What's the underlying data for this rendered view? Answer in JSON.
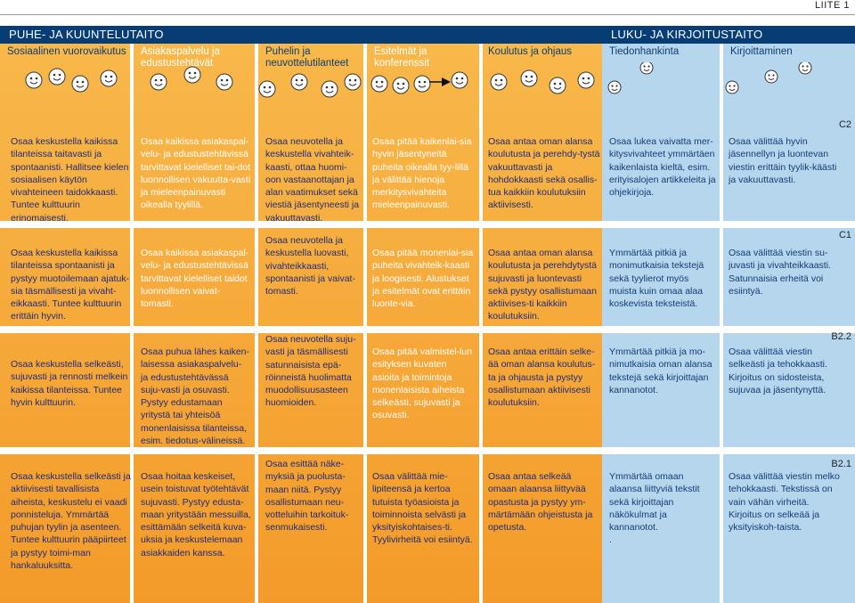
{
  "appendix_label": "LIITE 1",
  "sections": {
    "left": "PUHE- JA KUUNTELUTAITO",
    "right": "LUKU- JA KIRJOITUSTAITO"
  },
  "columns": [
    {
      "header": "Sosiaalinen vuorovaikutus"
    },
    {
      "header": "Asiakaspalvelu ja edustustehtävät"
    },
    {
      "header": "Puhelin ja neuvottelutilanteet"
    },
    {
      "header": "Esitelmät ja konferenssit"
    },
    {
      "header": "Koulutus ja ohjaus"
    },
    {
      "header": "Tiedonhankinta"
    },
    {
      "header": "Kirjoittaminen"
    }
  ],
  "levels": [
    "C2",
    "C1",
    "B2.2",
    "B2.1"
  ],
  "rows": [
    {
      "cells": [
        "Osaa keskustella kaikissa tilanteissa taitavasti ja spontaanisti. Hallitsee kielen sosiaalisen käytön vivahteineen taidokkaasti. Tuntee kulttuurin erinomaisesti.",
        "Osaa kaikissa asiakaspal-velu- ja edustustehtävissä tarvittavat kielelliset tai-dot luonnollisen vakuutta-vasti ja mieleenpainuvasti oikealla tyylillä.",
        "Osaa neuvotella ja keskustella vivahteik-kaasti, ottaa huomi-oon vastaanottajan ja alan vaatimukset sekä viestiä jäsentyneesti ja vakuuttavasti.",
        "Osaa pitää kaikenlai-sia hyvin jäsentyneitä puheita oikealla tyy-lillä ja välittää hienoja merkitysvivahteita mieleenpainuvasti.",
        "Osaa antaa oman alansa koulutusta ja perehdy-tystä vakuuttavasti ja hohdokkaasti sekä osallis-tua kaikkiin koulutuksiin aktiivisesti.",
        "Osaa lukea vaivatta mer-kitysvivahteet ymmärtäen kaikenlaista kieltä, esim. erityisalojen artikkeleita ja ohjekirjoja.",
        "Osaa välittää hyvin jäsennellyn ja luontevan viestin erittäin tyylik-käästi ja vakuuttavasti."
      ]
    },
    {
      "cells": [
        "Osaa keskustella kaikissa tilanteissa spontaanisti ja pystyy muotoilemaan ajatuk-sia täsmällisesti ja vivaht-eikkaasti. Tuntee kulttuurin erittäin hyvin.",
        "Osaa kaikissa asiakaspal-velu- ja edustustehtävissä tarvittavat kielelliset taidot luonnollisen vaivat-tomasti.",
        "Osaa neuvotella ja keskustella luovasti, vivahteikkaasti, spontaanisti ja vaivat-tomasti.",
        "Osaa pitää monenlai-sia puheita vivahteik-kaasti ja loogisesti. Alustukset ja esitelmät ovat erittäin luonte-via.",
        "Osaa antaa oman alansa koulutusta ja perehdytystä sujuvasti ja luontevasti sekä pystyy osallistumaan aktiivises-ti kaikkiin koulutuksiin.",
        "Ymmärtää pitkiä ja monimutkaisia tekstejä sekä tyylierot myös muista kuin omaa alaa koskevista teksteistä.",
        "Osaa välittää viestin su-juvasti ja vivahteikkaasti. Satunnaisia erheitä voi esiintyä."
      ]
    },
    {
      "cells": [
        "Osaa keskustella selkeästi, sujuvasti ja rennosti melkein kaikissa tilanteissa. Tuntee hyvin kulttuurin.",
        "Osaa puhua lähes kaiken-laisessa asiakaspalvelu- ja edustustehtävässä suju-vasti ja osuvasti. Pystyy edustamaan yritystä tai yhteisöä monenlaisissa tilanteissa, esim. tiedotus-välineissä.",
        "Osaa neuvotella suju-vasti ja täsmällisesti satunnaisista epä-röinneistä huolimatta muodollisuusasteen huomioiden.",
        "Osaa pitää valmistel-lun esityksen kuvaten asioita ja toimintoja monenlaisista aiheista selkeästi, sujuvasti ja osuvasti.",
        "Osaa antaa erittäin selke-ää oman alansa koulutus-ta ja ohjausta ja pystyy osallistumaan aktiivisesti koulutuksiin.",
        "Ymmärtää pitkiä ja mo-nimutkaisia oman alansa tekstejä sekä kirjoittajan kannanotot.",
        "Osaa välittää viestin selkeästi ja tehokkaasti. Kirjoitus on sidosteista, sujuvaa ja jäsentynyttä."
      ]
    },
    {
      "cells": [
        "Osaa keskustella selkeästi ja aktiivisesti tavallisista aiheista, keskustelu ei vaadi ponnisteluja. Ymmärtää puhujan tyylin ja asenteen. Tuntee kulttuurin pääpiirteet ja pystyy toimi-man hankaluuksitta.",
        "Osaa hoitaa keskeiset, usein toistuvat työtehtävät sujuvasti. Pystyy edusta-maan yritystään messuilla, esittämään selkeitä kuva-uksia ja keskustelemaan asiakkaiden kanssa.",
        "Osaa esittää näke-myksiä ja puolusta-maan niitä. Pystyy osallistumaan neu-votteluihin tarkoituk-senmukaisesti.",
        "Osaa välittää mie-lipiteensä ja kertoa tutuista työasioista ja toiminnoista selvästi ja yksityiskohtaises-ti. Tyylivirheitä voi esiintyä.",
        "Osaa antaa selkeää omaan alaansa liittyvää opastusta ja pystyy ym-märtämään ohjeistusta ja opetusta.",
        "Ymmärtää omaan alaansa liittyviä tekstit sekä kirjoittajan näkökulmat ja kannanotot.\n.",
        "Osaa välittää viestin melko tehokkaasti. Tekstissä on vain vähän virheitä. Kirjoitus on selkeää ja yksityiskoh-taista."
      ]
    }
  ],
  "colors": {
    "band": "#063d75",
    "orange": "#f5a333",
    "light_blue": "#b6d6ee"
  }
}
